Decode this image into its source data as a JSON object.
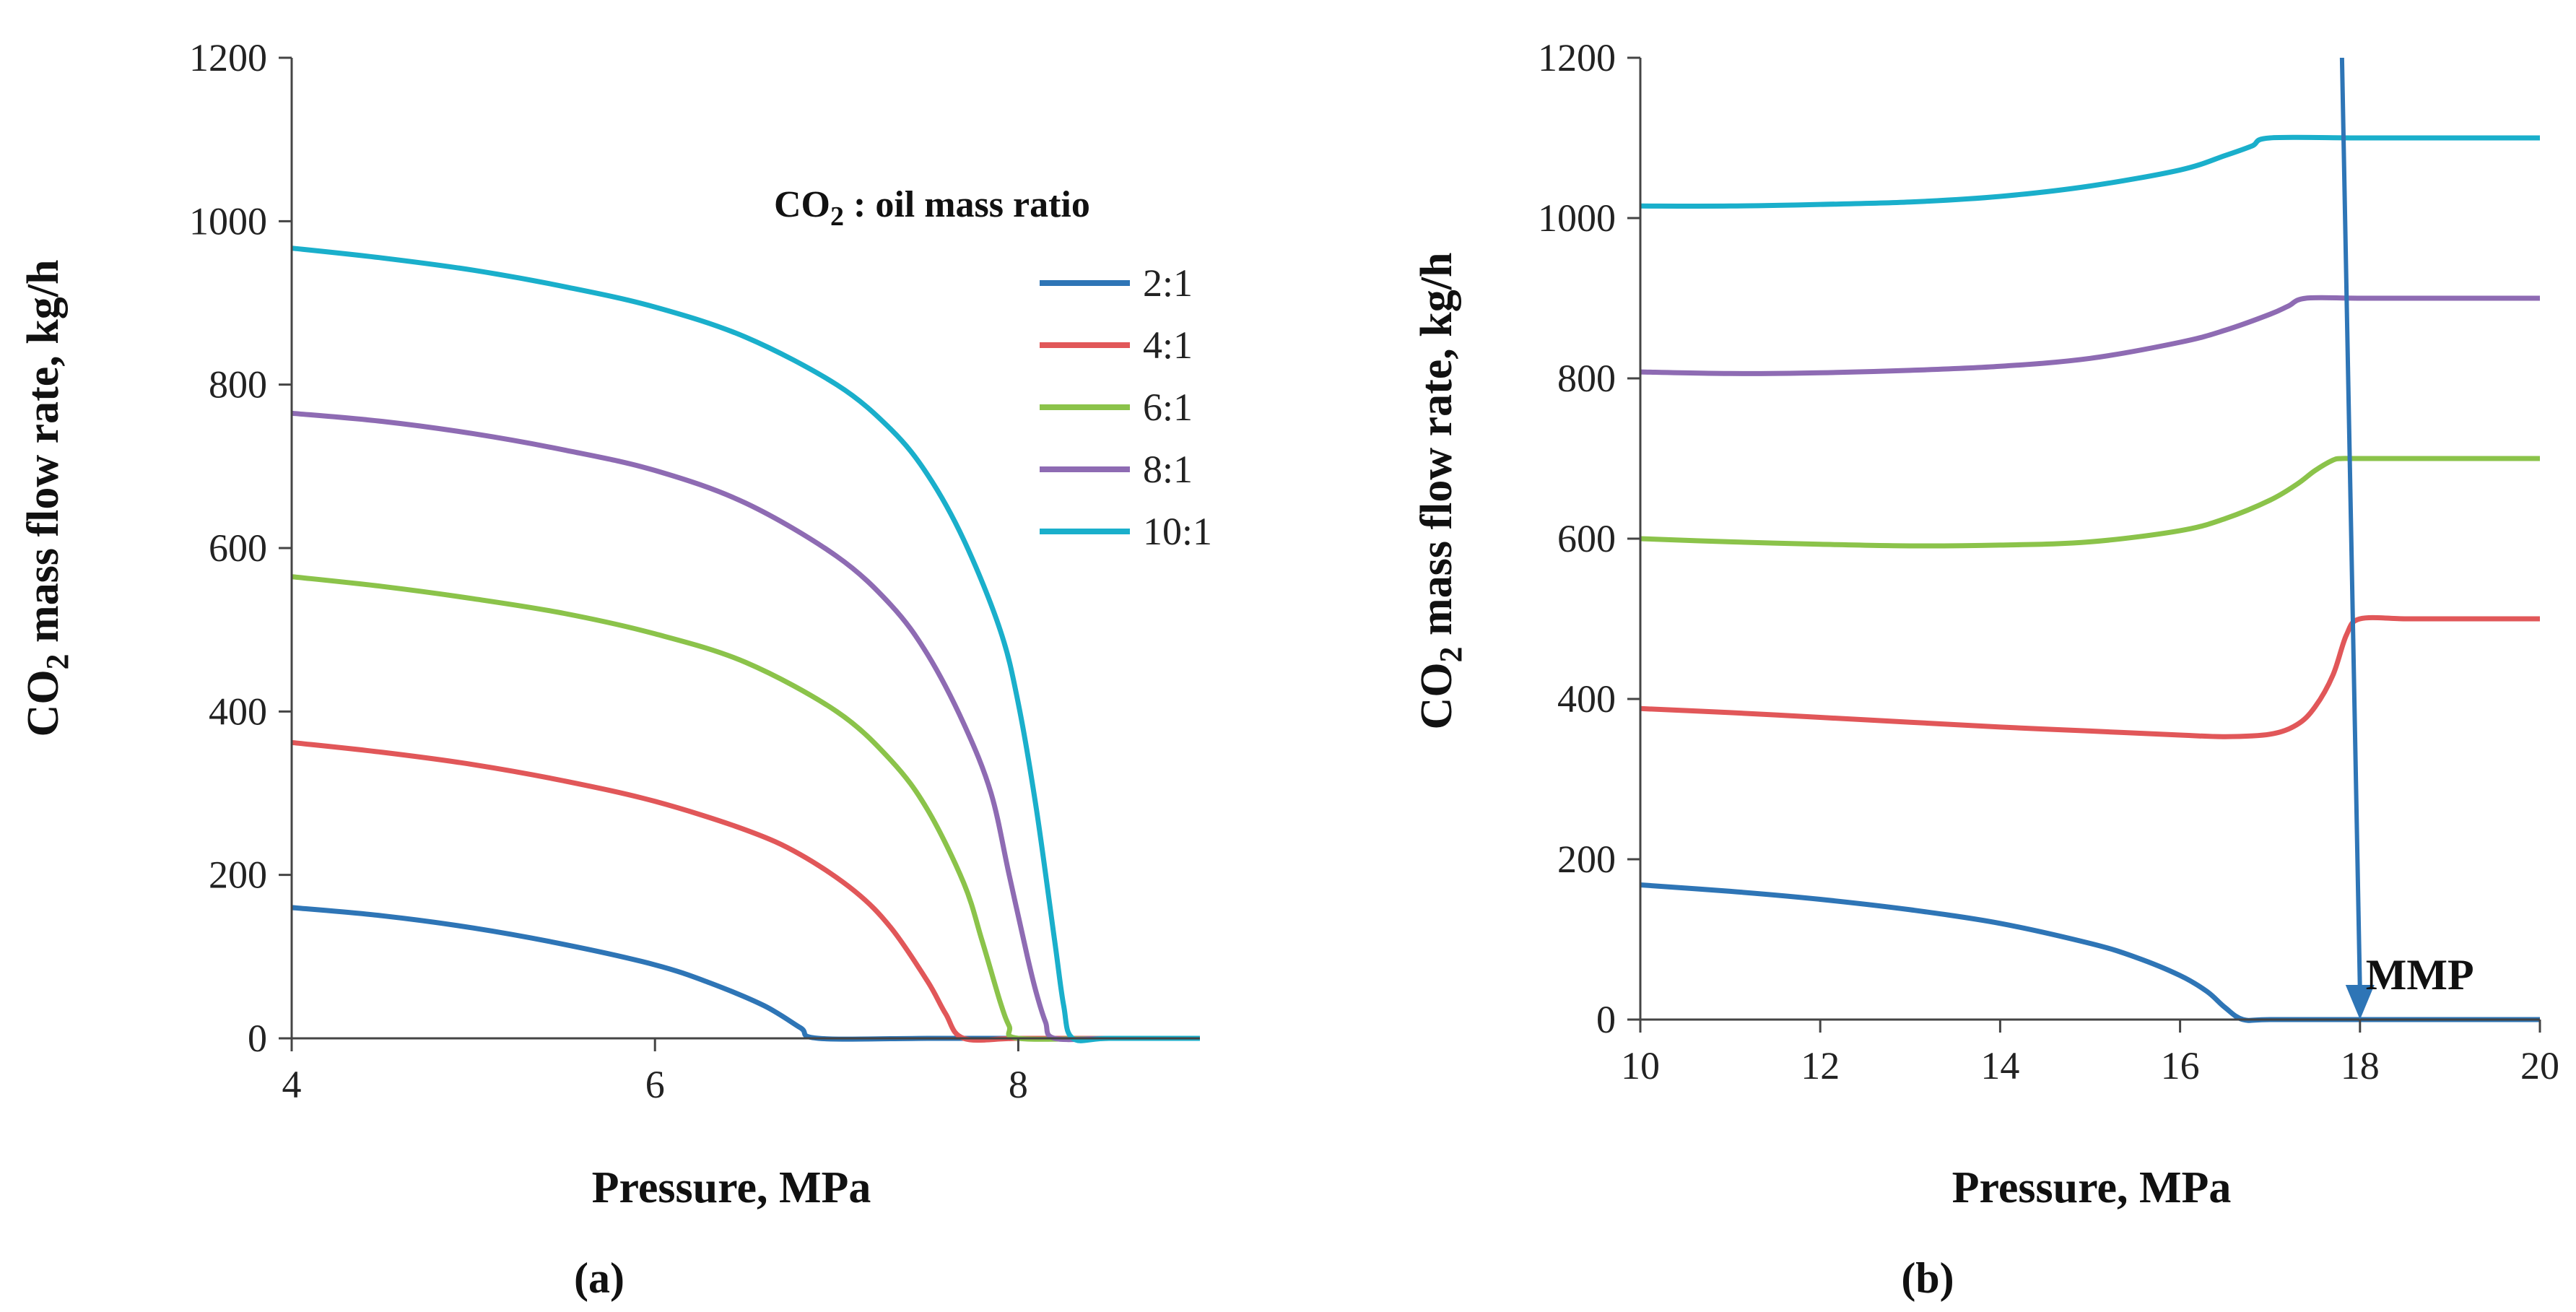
{
  "chart_data": [
    {
      "type": "line",
      "caption": "(a)",
      "xlabel": "Pressure, MPa",
      "ylabel_main": "CO",
      "ylabel_sub": "2",
      "ylabel_rest": " mass flow rate, kg/h",
      "xlim": [
        4,
        9
      ],
      "ylim": [
        0,
        1200
      ],
      "xticks": [
        "4",
        "6",
        "8"
      ],
      "xtick_values": [
        4,
        6,
        8
      ],
      "yticks": [
        "0",
        "200",
        "400",
        "600",
        "800",
        "1000",
        "1200"
      ],
      "ytick_values": [
        0,
        200,
        400,
        600,
        800,
        1000,
        1200
      ],
      "legend": {
        "title_main": "CO",
        "title_sub": "2",
        "title_rest": " : oil mass ratio",
        "position": "top-right"
      },
      "series": [
        {
          "name": "2:1",
          "color": "#2E75B6",
          "x": [
            4,
            4.5,
            5,
            5.5,
            6,
            6.3,
            6.6,
            6.8,
            6.9,
            7.5,
            8,
            8.5,
            9
          ],
          "y": [
            160,
            150,
            135,
            115,
            90,
            68,
            40,
            13,
            0,
            0,
            0,
            0,
            0
          ]
        },
        {
          "name": "4:1",
          "color": "#E15759",
          "x": [
            4,
            4.5,
            5,
            5.5,
            6,
            6.5,
            6.8,
            7.1,
            7.3,
            7.5,
            7.6,
            7.7,
            8,
            8.5,
            9
          ],
          "y": [
            362,
            350,
            335,
            315,
            290,
            255,
            225,
            180,
            135,
            70,
            30,
            0,
            0,
            0,
            0
          ]
        },
        {
          "name": "6:1",
          "color": "#8BC34A",
          "x": [
            4,
            4.5,
            5,
            5.5,
            6,
            6.5,
            7,
            7.3,
            7.5,
            7.7,
            7.8,
            7.9,
            7.95,
            8,
            8.5,
            9
          ],
          "y": [
            565,
            553,
            538,
            520,
            495,
            460,
            400,
            340,
            280,
            190,
            120,
            45,
            15,
            0,
            0,
            0
          ]
        },
        {
          "name": "8:1",
          "color": "#8E6BB3",
          "x": [
            4,
            4.5,
            5,
            5.5,
            6,
            6.5,
            7,
            7.3,
            7.5,
            7.7,
            7.85,
            7.95,
            8.05,
            8.1,
            8.15,
            8.2,
            8.5,
            9
          ],
          "y": [
            765,
            755,
            740,
            720,
            695,
            655,
            590,
            530,
            470,
            385,
            300,
            200,
            100,
            55,
            20,
            0,
            0,
            0
          ]
        },
        {
          "name": "10:1",
          "color": "#1AAFCB",
          "x": [
            4,
            4.5,
            5,
            5.5,
            6,
            6.5,
            7,
            7.3,
            7.5,
            7.7,
            7.9,
            8.0,
            8.1,
            8.2,
            8.25,
            8.3,
            8.5,
            9
          ],
          "y": [
            967,
            955,
            940,
            920,
            895,
            858,
            800,
            745,
            690,
            610,
            500,
            410,
            280,
            120,
            40,
            0,
            0,
            0
          ]
        }
      ]
    },
    {
      "type": "line",
      "caption": "(b)",
      "xlabel": "Pressure, MPa",
      "ylabel_main": "CO",
      "ylabel_sub": "2",
      "ylabel_rest": " mass flow rate, kg/h",
      "xlim": [
        10,
        20
      ],
      "ylim": [
        0,
        1200
      ],
      "xticks": [
        "10",
        "12",
        "14",
        "16",
        "18",
        "20"
      ],
      "xtick_values": [
        10,
        12,
        14,
        16,
        18,
        20
      ],
      "yticks": [
        "0",
        "200",
        "400",
        "600",
        "800",
        "1000",
        "1200"
      ],
      "ytick_values": [
        0,
        200,
        400,
        600,
        800,
        1000,
        1200
      ],
      "annotation": {
        "text": "MMP",
        "x": 18,
        "arrow_from": [
          17.8,
          1200
        ],
        "arrow_to": [
          18,
          0
        ],
        "color": "#2E75B6"
      },
      "series": [
        {
          "name": "2:1",
          "color": "#2E75B6",
          "x": [
            10,
            11,
            12,
            13,
            14,
            15,
            15.5,
            16,
            16.3,
            16.5,
            16.7,
            17,
            18,
            19,
            20
          ],
          "y": [
            168,
            160,
            150,
            137,
            120,
            95,
            78,
            55,
            35,
            15,
            0,
            0,
            0,
            0,
            0
          ]
        },
        {
          "name": "4:1",
          "color": "#E15759",
          "x": [
            10,
            11,
            12,
            13,
            14,
            15,
            16,
            16.5,
            17,
            17.3,
            17.5,
            17.7,
            17.85,
            18,
            18.5,
            19,
            20
          ],
          "y": [
            388,
            383,
            377,
            371,
            365,
            360,
            355,
            353,
            356,
            368,
            390,
            430,
            480,
            500,
            500,
            500,
            500
          ]
        },
        {
          "name": "6:1",
          "color": "#8BC34A",
          "x": [
            10,
            11,
            12,
            13,
            14,
            15,
            16,
            16.5,
            17,
            17.3,
            17.5,
            17.7,
            17.8,
            18,
            19,
            20
          ],
          "y": [
            600,
            596,
            593,
            591,
            592,
            596,
            610,
            625,
            648,
            668,
            685,
            698,
            700,
            700,
            700,
            700
          ]
        },
        {
          "name": "8:1",
          "color": "#8E6BB3",
          "x": [
            10,
            11,
            12,
            13,
            14,
            15,
            16,
            16.5,
            17,
            17.2,
            17.4,
            18,
            19,
            20
          ],
          "y": [
            808,
            806,
            807,
            810,
            815,
            825,
            845,
            860,
            880,
            890,
            900,
            900,
            900,
            900
          ]
        },
        {
          "name": "10:1",
          "color": "#1AAFCB",
          "x": [
            10,
            11,
            12,
            13,
            14,
            15,
            16,
            16.5,
            16.8,
            17,
            18,
            19,
            20
          ],
          "y": [
            1015,
            1015,
            1017,
            1020,
            1027,
            1040,
            1060,
            1078,
            1090,
            1100,
            1100,
            1100,
            1100
          ]
        }
      ]
    }
  ]
}
